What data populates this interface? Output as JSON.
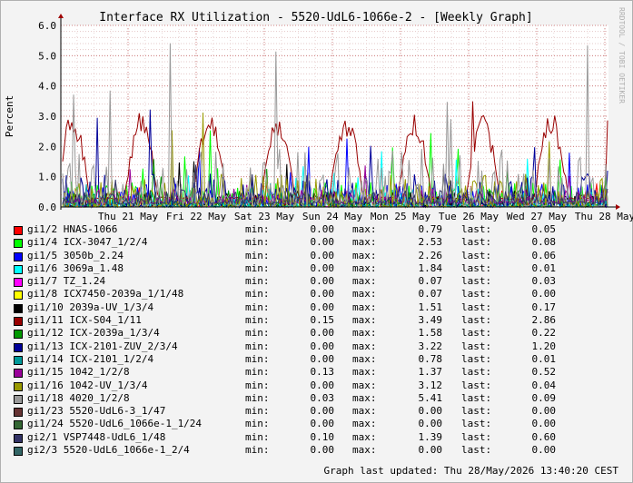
{
  "chart_data": {
    "type": "line",
    "title": "Interface RX Utilization - 5520-UdL6-1066e-2 - [Weekly Graph]",
    "ylabel": "Percent",
    "ylim": [
      0,
      6
    ],
    "yticks": [
      "0.0",
      "1.0",
      "2.0",
      "3.0",
      "4.0",
      "5.0",
      "6.0"
    ],
    "xticks": [
      "Thu 21 May",
      "Fri 22 May",
      "Sat 23 May",
      "Sun 24 May",
      "Mon 25 May",
      "Tue 26 May",
      "Wed 27 May",
      "Thu 28 May"
    ],
    "grid": true,
    "watermark": "RRDTOOL / TOBI OETIKER",
    "series": [
      {
        "name": "gi1/2 HNAS-1066",
        "color": "#ff0000",
        "min": "0.00",
        "max": "0.79",
        "last": "0.05"
      },
      {
        "name": "gi1/4 ICX-3047_1/2/4",
        "color": "#00ff00",
        "min": "0.00",
        "max": "2.53",
        "last": "0.08"
      },
      {
        "name": "gi1/5 3050b_2.24",
        "color": "#0000ff",
        "min": "0.00",
        "max": "2.26",
        "last": "0.06"
      },
      {
        "name": "gi1/6 3069a_1.48",
        "color": "#00ffff",
        "min": "0.00",
        "max": "1.84",
        "last": "0.01"
      },
      {
        "name": "gi1/7 TZ_1.24",
        "color": "#ff00ff",
        "min": "0.00",
        "max": "0.07",
        "last": "0.03"
      },
      {
        "name": "gi1/8 ICX7450-2039a_1/1/48",
        "color": "#ffff00",
        "min": "0.00",
        "max": "0.07",
        "last": "0.00"
      },
      {
        "name": "gi1/10 2039a-UV_1/3/4",
        "color": "#000000",
        "min": "0.00",
        "max": "1.51",
        "last": "0.17"
      },
      {
        "name": "gi1/11 ICX-S04_1/11",
        "color": "#990000",
        "min": "0.15",
        "max": "3.49",
        "last": "2.86"
      },
      {
        "name": "gi1/12 ICX-2039a_1/3/4",
        "color": "#009900",
        "min": "0.00",
        "max": "1.58",
        "last": "0.22"
      },
      {
        "name": "gi1/13 ICX-2101-ZUV_2/3/4",
        "color": "#000099",
        "min": "0.00",
        "max": "3.22",
        "last": "1.20"
      },
      {
        "name": "gi1/14 ICX-2101_1/2/4",
        "color": "#009999",
        "min": "0.00",
        "max": "0.78",
        "last": "0.01"
      },
      {
        "name": "gi1/15 1042_1/2/8",
        "color": "#990099",
        "min": "0.13",
        "max": "1.37",
        "last": "0.52"
      },
      {
        "name": "gi1/16 1042-UV_1/3/4",
        "color": "#999900",
        "min": "0.00",
        "max": "3.12",
        "last": "0.04"
      },
      {
        "name": "gi1/18 4020_1/2/8",
        "color": "#999999",
        "min": "0.03",
        "max": "5.41",
        "last": "0.09"
      },
      {
        "name": "gi1/23 5520-UdL6-3_1/47",
        "color": "#663333",
        "min": "0.00",
        "max": "0.00",
        "last": "0.00"
      },
      {
        "name": "gi1/24 5520-UdL6_1066e-1_1/24",
        "color": "#336633",
        "min": "0.00",
        "max": "0.00",
        "last": "0.00"
      },
      {
        "name": "gi2/1 VSP7448-UdL6_1/48",
        "color": "#333366",
        "min": "0.10",
        "max": "1.39",
        "last": "0.60"
      },
      {
        "name": "gi2/3 5520-UdL6_1066e-1_2/4",
        "color": "#336666",
        "min": "0.00",
        "max": "0.00",
        "last": "0.00"
      }
    ]
  },
  "legend_labels": {
    "min": "min:",
    "max": "max:",
    "last": "last:"
  },
  "footer": {
    "updated": "Graph last updated: Thu 28/May/2026 13:40:20 CEST"
  }
}
